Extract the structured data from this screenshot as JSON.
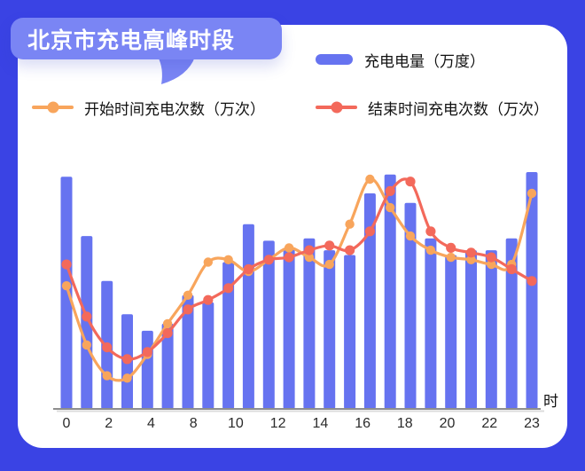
{
  "header": {
    "title": "北京市充电高峰时段"
  },
  "colors": {
    "page_background": "#3A43E4",
    "card_background": "#FFFFFF",
    "title_bubble": "#7A85F4",
    "title_text": "#FFFFFF",
    "bar": "#6673F0",
    "start_line": "#F8A55C",
    "end_line": "#F3695B",
    "axis_line": "#8E8E8E",
    "tick_text": "#2B2B2B"
  },
  "chart_data": {
    "type": "bar",
    "combo": "bar + 2 smoothed line series with point markers",
    "title": "北京市充电高峰时段",
    "x": [
      0,
      1,
      2,
      3,
      4,
      5,
      6,
      7,
      8,
      9,
      10,
      11,
      12,
      13,
      14,
      15,
      16,
      17,
      18,
      19,
      20,
      21,
      22,
      23
    ],
    "x_axis": {
      "visible_tick_labels": [
        "0",
        "2",
        "4",
        "8",
        "10",
        "12",
        "14",
        "16",
        "18",
        "20",
        "22",
        "23"
      ],
      "unit": "时"
    },
    "y_axis": {
      "visible": false,
      "note": "no y axis / gridlines shown; values are relative units where tallest bar = 100",
      "ylim": [
        0,
        105
      ]
    },
    "grid": false,
    "legend_position": "top",
    "series": [
      {
        "name": "充电电量（万度）",
        "type": "bar",
        "color": "#6673F0",
        "values": [
          98,
          73,
          54,
          40,
          33,
          36,
          48,
          45,
          62,
          78,
          71,
          68,
          72,
          67,
          65,
          91,
          99,
          87,
          72,
          65,
          67,
          67,
          72,
          100
        ]
      },
      {
        "name": "开始时间充电次数（万次）",
        "type": "line",
        "color": "#F8A55C",
        "values": [
          52,
          27,
          14,
          13,
          23,
          36,
          48,
          62,
          63,
          58,
          63,
          68,
          64,
          61,
          78,
          97,
          85,
          73,
          67,
          64,
          63,
          61,
          61,
          91
        ]
      },
      {
        "name": "结束时间充电次数（万次）",
        "type": "line",
        "color": "#F3695B",
        "values": [
          61,
          39,
          26,
          21,
          24,
          32,
          42,
          46,
          51,
          59,
          63,
          64,
          67,
          69,
          67,
          75,
          92,
          96,
          75,
          68,
          66,
          64,
          59,
          54
        ]
      }
    ]
  }
}
